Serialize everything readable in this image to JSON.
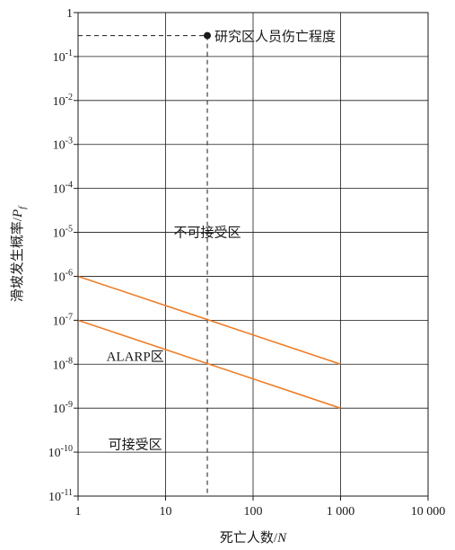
{
  "chart_data": {
    "type": "line",
    "xscale": "log",
    "yscale": "log",
    "xlim": [
      1,
      10000
    ],
    "ylim": [
      1e-11,
      1
    ],
    "xlabel": "死亡人数/N",
    "ylabel": "滑坡发生概率/P_f",
    "x_ticks": [
      {
        "value": 1,
        "label": "1"
      },
      {
        "value": 10,
        "label": "10"
      },
      {
        "value": 100,
        "label": "100"
      },
      {
        "value": 1000,
        "label": "1 000"
      },
      {
        "value": 10000,
        "label": "10 000"
      }
    ],
    "y_ticks": [
      {
        "value": 1,
        "base": "1",
        "exp": ""
      },
      {
        "value": 0.1,
        "base": "10",
        "exp": "-1"
      },
      {
        "value": 0.01,
        "base": "10",
        "exp": "-2"
      },
      {
        "value": 0.001,
        "base": "10",
        "exp": "-3"
      },
      {
        "value": 0.0001,
        "base": "10",
        "exp": "-4"
      },
      {
        "value": 1e-05,
        "base": "10",
        "exp": "-5"
      },
      {
        "value": 1e-06,
        "base": "10",
        "exp": "-6"
      },
      {
        "value": 1e-07,
        "base": "10",
        "exp": "-7"
      },
      {
        "value": 1e-08,
        "base": "10",
        "exp": "-8"
      },
      {
        "value": 1e-09,
        "base": "10",
        "exp": "-9"
      },
      {
        "value": 1e-10,
        "base": "10",
        "exp": "-10"
      },
      {
        "value": 1e-11,
        "base": "10",
        "exp": "-11"
      }
    ],
    "grid": true,
    "series": [
      {
        "x": [
          1,
          1000
        ],
        "y": [
          1e-06,
          1e-08
        ],
        "color": "#ee7d28"
      },
      {
        "x": [
          1,
          1000
        ],
        "y": [
          1e-07,
          1e-09
        ],
        "color": "#ee7d28"
      }
    ],
    "study_point": {
      "x": 30,
      "y": 0.3,
      "label": "研究区人员伤亡程度"
    },
    "regions": [
      {
        "label": "不可接受区",
        "x": 30,
        "y": 1e-05
      },
      {
        "label": "ALARP区",
        "x": 4.5,
        "y": 1.5e-08
      },
      {
        "label": "可接受区",
        "x": 4.5,
        "y": 1.5e-10
      }
    ]
  },
  "colors": {
    "line": "#ee7d28",
    "axis": "#1a1a1a",
    "grid": "#1a1a1a"
  }
}
